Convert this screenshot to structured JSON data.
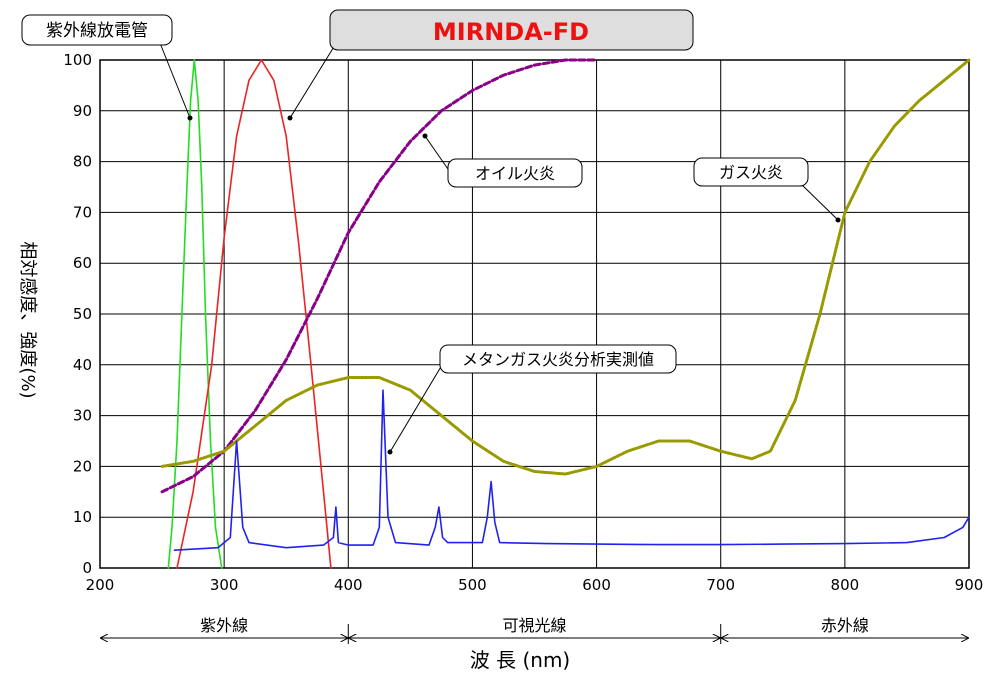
{
  "chart_data": {
    "type": "line",
    "title": "MIRNDA-FD",
    "xlabel": "波 長 (nm)",
    "ylabel": "相対感度、強度(%)",
    "xlim": [
      200,
      900
    ],
    "ylim": [
      0,
      100
    ],
    "x_ticks": [
      "200",
      "300",
      "400",
      "500",
      "600",
      "700",
      "800",
      "900"
    ],
    "y_ticks": [
      "0",
      "10",
      "20",
      "30",
      "40",
      "50",
      "60",
      "70",
      "80",
      "90",
      "100"
    ],
    "grid": true,
    "bands": [
      {
        "label": "紫外線",
        "from": 200,
        "to": 400
      },
      {
        "label": "可視光線",
        "from": 400,
        "to": 700
      },
      {
        "label": "赤外線",
        "from": 700,
        "to": 900
      }
    ],
    "series": [
      {
        "name": "紫外線放電管",
        "color": "#22dd22",
        "style": "solid",
        "points": [
          [
            255,
            0
          ],
          [
            258,
            8
          ],
          [
            262,
            25
          ],
          [
            266,
            50
          ],
          [
            270,
            75
          ],
          [
            273,
            92
          ],
          [
            276,
            100
          ],
          [
            279,
            92
          ],
          [
            282,
            75
          ],
          [
            285,
            50
          ],
          [
            289,
            25
          ],
          [
            293,
            8
          ],
          [
            298,
            0
          ]
        ]
      },
      {
        "name": "MIRNDA-FD",
        "color": "#ee2222",
        "style": "solid",
        "points": [
          [
            262,
            0
          ],
          [
            275,
            15
          ],
          [
            290,
            40
          ],
          [
            300,
            65
          ],
          [
            310,
            85
          ],
          [
            320,
            96
          ],
          [
            330,
            100
          ],
          [
            340,
            96
          ],
          [
            350,
            85
          ],
          [
            360,
            64
          ],
          [
            370,
            40
          ],
          [
            380,
            15
          ],
          [
            386,
            0
          ]
        ]
      },
      {
        "name": "オイル火炎",
        "color": "#880088",
        "style": "dashed",
        "points": [
          [
            250,
            15
          ],
          [
            275,
            18
          ],
          [
            300,
            23
          ],
          [
            325,
            31
          ],
          [
            350,
            41
          ],
          [
            375,
            53
          ],
          [
            400,
            66
          ],
          [
            425,
            76
          ],
          [
            450,
            84
          ],
          [
            475,
            90
          ],
          [
            500,
            94
          ],
          [
            525,
            97
          ],
          [
            550,
            99
          ],
          [
            575,
            100
          ],
          [
            600,
            100
          ]
        ]
      },
      {
        "name": "ガス火炎",
        "color": "#999900",
        "style": "dotted",
        "points": [
          [
            250,
            20
          ],
          [
            275,
            21
          ],
          [
            300,
            23
          ],
          [
            325,
            28
          ],
          [
            350,
            33
          ],
          [
            375,
            36
          ],
          [
            400,
            37.5
          ],
          [
            425,
            37.5
          ],
          [
            450,
            35
          ],
          [
            475,
            30
          ],
          [
            500,
            25
          ],
          [
            525,
            21
          ],
          [
            550,
            19
          ],
          [
            575,
            18.5
          ],
          [
            600,
            20
          ],
          [
            625,
            23
          ],
          [
            650,
            25
          ],
          [
            675,
            25
          ],
          [
            700,
            23
          ],
          [
            725,
            21.5
          ],
          [
            740,
            23
          ],
          [
            760,
            33
          ],
          [
            780,
            50
          ],
          [
            800,
            70
          ],
          [
            820,
            80
          ],
          [
            840,
            87
          ],
          [
            860,
            92
          ],
          [
            880,
            96
          ],
          [
            900,
            100
          ]
        ]
      },
      {
        "name": "メタンガス火炎分析実測値",
        "color": "#2222ee",
        "style": "solid",
        "points": [
          [
            260,
            3.5
          ],
          [
            295,
            4
          ],
          [
            305,
            6
          ],
          [
            310,
            25
          ],
          [
            315,
            8
          ],
          [
            320,
            5
          ],
          [
            350,
            4
          ],
          [
            380,
            4.5
          ],
          [
            388,
            6
          ],
          [
            390,
            12
          ],
          [
            392,
            5
          ],
          [
            400,
            4.5
          ],
          [
            420,
            4.5
          ],
          [
            425,
            8
          ],
          [
            428,
            35
          ],
          [
            432,
            10
          ],
          [
            438,
            5
          ],
          [
            465,
            4.5
          ],
          [
            470,
            8
          ],
          [
            473,
            12
          ],
          [
            476,
            6
          ],
          [
            480,
            5
          ],
          [
            508,
            5
          ],
          [
            512,
            10
          ],
          [
            515,
            17
          ],
          [
            518,
            9
          ],
          [
            522,
            5
          ],
          [
            560,
            4.8
          ],
          [
            600,
            4.7
          ],
          [
            650,
            4.6
          ],
          [
            700,
            4.6
          ],
          [
            750,
            4.7
          ],
          [
            800,
            4.8
          ],
          [
            850,
            5
          ],
          [
            880,
            6
          ],
          [
            895,
            8
          ],
          [
            900,
            10
          ]
        ]
      }
    ]
  },
  "annotations": {
    "uv_tube": "紫外線放電管",
    "mirnda": "MIRNDA-FD",
    "oil_flame": "オイル火炎",
    "gas_flame": "ガス火炎",
    "methane": "メタンガス火炎分析実測値"
  }
}
